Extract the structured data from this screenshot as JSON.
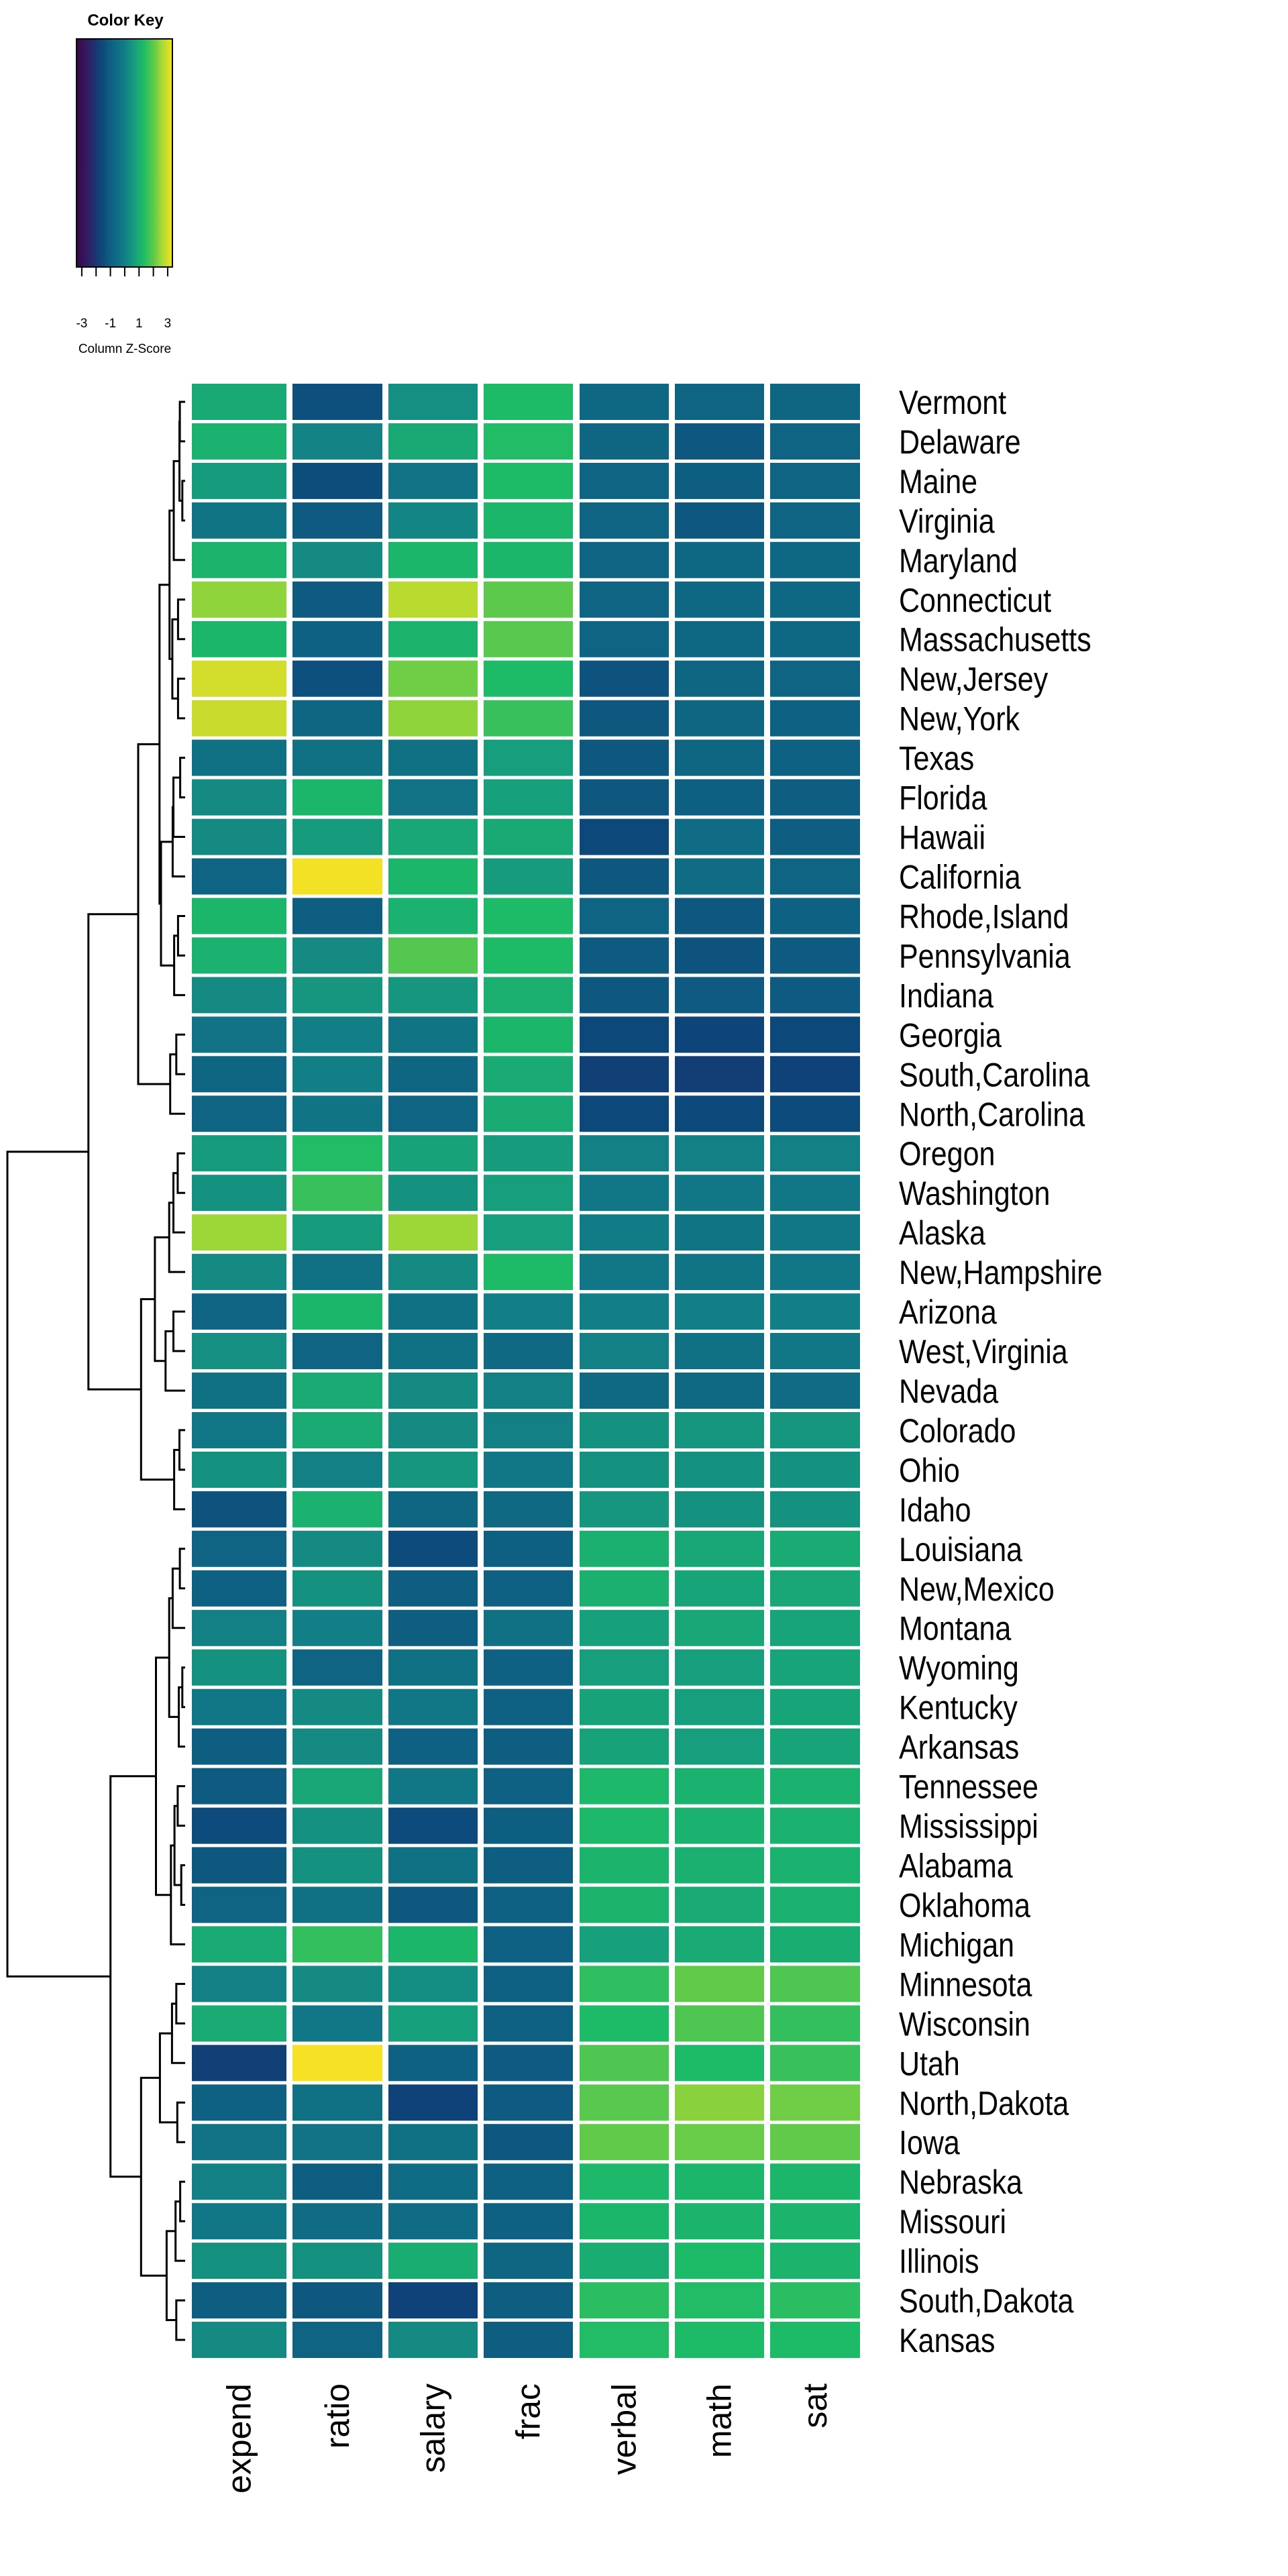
{
  "chart_data": {
    "type": "heatmap",
    "title": "",
    "color_key": {
      "title": "Color Key",
      "xlabel": "Column Z-Score",
      "range": [
        -3.37,
        3.33
      ],
      "ticks": [
        -3,
        -2,
        -1,
        0,
        1,
        2,
        3
      ],
      "tick_labels": [
        "-3",
        "",
        "-1",
        "",
        "1",
        "",
        "3"
      ],
      "palette": "viridis",
      "color_stops": [
        {
          "z": -3.37,
          "color": "#3A0548"
        },
        {
          "z": -2.5,
          "color": "#2F2166"
        },
        {
          "z": -1.7,
          "color": "#0D4479"
        },
        {
          "z": -1.0,
          "color": "#0E5E82"
        },
        {
          "z": 0.0,
          "color": "#127E86"
        },
        {
          "z": 0.7,
          "color": "#17A07C"
        },
        {
          "z": 1.3,
          "color": "#1DBA68"
        },
        {
          "z": 2.0,
          "color": "#5CC94C"
        },
        {
          "z": 2.6,
          "color": "#A9D933"
        },
        {
          "z": 3.33,
          "color": "#F6E124"
        }
      ]
    },
    "columns": [
      "expend",
      "ratio",
      "salary",
      "frac",
      "verbal",
      "math",
      "sat"
    ],
    "rows": [
      {
        "name": "Vermont",
        "values": [
          0.9,
          -1.4,
          0.35,
          1.3,
          -0.7,
          -0.8,
          -0.75
        ]
      },
      {
        "name": "Delaware",
        "values": [
          1.1,
          0.1,
          0.9,
          1.35,
          -0.75,
          -1.15,
          -0.8
        ]
      },
      {
        "name": "Maine",
        "values": [
          0.6,
          -1.45,
          -0.35,
          1.3,
          -0.8,
          -1.0,
          -0.8
        ]
      },
      {
        "name": "Virginia",
        "values": [
          -0.3,
          -1.1,
          0.15,
          1.2,
          -0.8,
          -1.15,
          -0.8
        ]
      },
      {
        "name": "Maryland",
        "values": [
          1.15,
          0.25,
          1.2,
          1.2,
          -0.85,
          -0.7,
          -0.7
        ]
      },
      {
        "name": "Connecticut",
        "values": [
          2.4,
          -1.1,
          2.75,
          2.0,
          -0.85,
          -0.7,
          -0.7
        ]
      },
      {
        "name": "Massachusetts",
        "values": [
          1.2,
          -0.9,
          1.15,
          1.95,
          -0.8,
          -0.7,
          -0.7
        ]
      },
      {
        "name": "New,Jersey",
        "values": [
          3.0,
          -1.4,
          2.15,
          1.3,
          -1.3,
          -0.75,
          -0.8
        ]
      },
      {
        "name": "New,York",
        "values": [
          2.9,
          -0.75,
          2.4,
          1.6,
          -1.2,
          -0.75,
          -0.9
        ]
      },
      {
        "name": "Texas",
        "values": [
          -0.4,
          -0.4,
          -0.4,
          0.65,
          -1.2,
          -0.75,
          -0.9
        ]
      },
      {
        "name": "Florida",
        "values": [
          0.25,
          1.2,
          -0.35,
          0.7,
          -1.2,
          -0.95,
          -1.0
        ]
      },
      {
        "name": "Hawaii",
        "values": [
          0.25,
          0.6,
          0.85,
          0.9,
          -1.6,
          -0.55,
          -1.0
        ]
      },
      {
        "name": "California",
        "values": [
          -0.8,
          3.3,
          1.2,
          0.6,
          -1.2,
          -0.55,
          -0.8
        ]
      },
      {
        "name": "Rhode,Island",
        "values": [
          1.2,
          -1.0,
          1.1,
          1.3,
          -0.8,
          -1.2,
          -0.9
        ]
      },
      {
        "name": "Pennsylvania",
        "values": [
          1.1,
          0.25,
          1.9,
          1.3,
          -1.1,
          -1.3,
          -1.1
        ]
      },
      {
        "name": "Indiana",
        "values": [
          0.25,
          0.5,
          0.5,
          1.05,
          -1.2,
          -1.1,
          -1.1
        ]
      },
      {
        "name": "Georgia",
        "values": [
          -0.35,
          0.0,
          -0.3,
          1.2,
          -1.6,
          -1.7,
          -1.6
        ]
      },
      {
        "name": "South,Carolina",
        "values": [
          -0.75,
          0.0,
          -0.75,
          0.95,
          -1.8,
          -1.85,
          -1.75
        ]
      },
      {
        "name": "North,Carolina",
        "values": [
          -0.8,
          -0.3,
          -0.8,
          0.95,
          -1.6,
          -1.6,
          -1.5
        ]
      },
      {
        "name": "Oregon",
        "values": [
          0.6,
          1.35,
          0.75,
          0.6,
          0.05,
          0.05,
          0.05
        ]
      },
      {
        "name": "Washington",
        "values": [
          0.4,
          1.6,
          0.4,
          0.65,
          -0.25,
          -0.25,
          -0.25
        ]
      },
      {
        "name": "Alaska",
        "values": [
          2.5,
          0.6,
          2.5,
          0.65,
          -0.05,
          -0.3,
          -0.25
        ]
      },
      {
        "name": "New,Hampshire",
        "values": [
          0.25,
          -0.4,
          0.25,
          1.3,
          -0.25,
          -0.3,
          -0.25
        ]
      },
      {
        "name": "Arizona",
        "values": [
          -0.8,
          1.2,
          -0.4,
          0.0,
          0.0,
          0.0,
          0.0
        ]
      },
      {
        "name": "West,Virginia",
        "values": [
          0.35,
          -0.85,
          -0.4,
          -0.65,
          0.05,
          -0.4,
          -0.25
        ]
      },
      {
        "name": "Nevada",
        "values": [
          -0.4,
          0.95,
          0.25,
          0.05,
          -0.65,
          -0.65,
          -0.55
        ]
      },
      {
        "name": "Colorado",
        "values": [
          -0.25,
          0.95,
          0.25,
          0.05,
          0.4,
          0.5,
          0.5
        ]
      },
      {
        "name": "Ohio",
        "values": [
          0.4,
          0.05,
          0.5,
          -0.25,
          0.4,
          0.4,
          0.4
        ]
      },
      {
        "name": "Idaho",
        "values": [
          -1.3,
          1.1,
          -0.75,
          -0.65,
          0.5,
          0.4,
          0.4
        ]
      },
      {
        "name": "Louisiana",
        "values": [
          -0.8,
          0.25,
          -1.5,
          -0.95,
          1.05,
          0.85,
          0.95
        ]
      },
      {
        "name": "New,Mexico",
        "values": [
          -0.9,
          0.4,
          -1.0,
          -0.9,
          1.05,
          0.8,
          0.85
        ]
      },
      {
        "name": "Montana",
        "values": [
          0.05,
          0.0,
          -1.0,
          -0.4,
          0.7,
          0.85,
          0.8
        ]
      },
      {
        "name": "Wyoming",
        "values": [
          0.4,
          -0.8,
          -0.4,
          -0.9,
          0.65,
          0.65,
          0.8
        ]
      },
      {
        "name": "Kentucky",
        "values": [
          -0.25,
          0.25,
          -0.25,
          -0.9,
          0.75,
          0.65,
          0.8
        ]
      },
      {
        "name": "Arkansas",
        "values": [
          -1.0,
          0.25,
          -0.9,
          -1.0,
          0.75,
          0.65,
          0.8
        ]
      },
      {
        "name": "Tennessee",
        "values": [
          -1.1,
          0.85,
          -0.25,
          -0.9,
          1.25,
          1.1,
          1.1
        ]
      },
      {
        "name": "Mississippi",
        "values": [
          -1.5,
          0.4,
          -1.5,
          -1.0,
          1.25,
          1.1,
          1.1
        ]
      },
      {
        "name": "Alabama",
        "values": [
          -1.2,
          0.4,
          -0.4,
          -1.0,
          1.15,
          1.05,
          1.1
        ]
      },
      {
        "name": "Oklahoma",
        "values": [
          -0.8,
          -0.4,
          -1.2,
          -0.9,
          1.15,
          0.95,
          1.1
        ]
      },
      {
        "name": "Michigan",
        "values": [
          0.95,
          1.55,
          1.2,
          -0.9,
          0.7,
          0.95,
          1.0
        ]
      },
      {
        "name": "Minnesota",
        "values": [
          0.05,
          0.25,
          0.3,
          -0.9,
          1.5,
          2.05,
          1.85
        ]
      },
      {
        "name": "Wisconsin",
        "values": [
          0.95,
          -0.25,
          0.7,
          -0.9,
          1.3,
          1.85,
          1.55
        ]
      },
      {
        "name": "Utah",
        "values": [
          -1.8,
          3.4,
          -0.9,
          -1.1,
          1.85,
          1.3,
          1.6
        ]
      },
      {
        "name": "North,Dakota",
        "values": [
          -0.9,
          -0.4,
          -1.75,
          -1.1,
          1.95,
          2.35,
          2.15
        ]
      },
      {
        "name": "Iowa",
        "values": [
          -0.35,
          -0.35,
          -0.4,
          -1.15,
          2.05,
          2.1,
          2.05
        ]
      },
      {
        "name": "Nebraska",
        "values": [
          0.05,
          -1.0,
          -0.55,
          -0.9,
          1.25,
          1.2,
          1.2
        ]
      },
      {
        "name": "Missouri",
        "values": [
          -0.25,
          -0.55,
          -0.55,
          -0.9,
          1.2,
          1.15,
          1.15
        ]
      },
      {
        "name": "Illinois",
        "values": [
          0.4,
          0.4,
          1.0,
          -0.75,
          1.0,
          1.3,
          1.15
        ]
      },
      {
        "name": "South,Dakota",
        "values": [
          -1.0,
          -1.15,
          -1.75,
          -1.0,
          1.45,
          1.35,
          1.45
        ]
      },
      {
        "name": "Kansas",
        "values": [
          0.25,
          -0.8,
          0.25,
          -1.0,
          1.35,
          1.3,
          1.3
        ]
      }
    ],
    "row_dendrogram": {
      "height_scale": "relative",
      "merges": [
        {
          "a": 0,
          "b": 1,
          "h": 0.03
        },
        {
          "a": 2,
          "b": 3,
          "h": 0.016
        },
        {
          "a": "m0",
          "b": "m1",
          "h": 0.032
        },
        {
          "a": "m2",
          "b": 4,
          "h": 0.064
        },
        {
          "a": 5,
          "b": 6,
          "h": 0.04
        },
        {
          "a": 7,
          "b": 8,
          "h": 0.04
        },
        {
          "a": "m4",
          "b": "m5",
          "h": 0.072
        },
        {
          "a": "m3",
          "b": "m6",
          "h": 0.088
        },
        {
          "a": 9,
          "b": 10,
          "h": 0.028
        },
        {
          "a": "m8",
          "b": 11,
          "h": 0.066
        },
        {
          "a": "m9",
          "b": 12,
          "h": 0.07
        },
        {
          "a": 13,
          "b": 14,
          "h": 0.04
        },
        {
          "a": "m11",
          "b": 15,
          "h": 0.062
        },
        {
          "a": "m10",
          "b": "m12",
          "h": 0.136
        },
        {
          "a": "m7",
          "b": "m13",
          "h": 0.144
        },
        {
          "a": 16,
          "b": 17,
          "h": 0.05
        },
        {
          "a": "m15",
          "b": 18,
          "h": 0.084
        },
        {
          "a": "m14",
          "b": "m16",
          "h": 0.264
        },
        {
          "a": 19,
          "b": 20,
          "h": 0.042
        },
        {
          "a": "m18",
          "b": 21,
          "h": 0.066
        },
        {
          "a": "m19",
          "b": 22,
          "h": 0.09
        },
        {
          "a": 23,
          "b": 24,
          "h": 0.066
        },
        {
          "a": "m21",
          "b": 25,
          "h": 0.11
        },
        {
          "a": "m20",
          "b": "m22",
          "h": 0.17
        },
        {
          "a": 26,
          "b": 27,
          "h": 0.032
        },
        {
          "a": "m24",
          "b": 28,
          "h": 0.062
        },
        {
          "a": "m23",
          "b": "m25",
          "h": 0.248
        },
        {
          "a": "m17",
          "b": "m26",
          "h": 0.544
        },
        {
          "a": 29,
          "b": 30,
          "h": 0.03
        },
        {
          "a": "m28",
          "b": 31,
          "h": 0.07
        },
        {
          "a": 32,
          "b": 33,
          "h": 0.016
        },
        {
          "a": "m30",
          "b": 34,
          "h": 0.036
        },
        {
          "a": "m29",
          "b": "m31",
          "h": 0.09
        },
        {
          "a": 35,
          "b": 36,
          "h": 0.042
        },
        {
          "a": 37,
          "b": 38,
          "h": 0.022
        },
        {
          "a": "m33",
          "b": "m34",
          "h": 0.06
        },
        {
          "a": "m35",
          "b": 39,
          "h": 0.08
        },
        {
          "a": "m32",
          "b": "m36",
          "h": 0.164
        },
        {
          "a": 40,
          "b": 41,
          "h": 0.05
        },
        {
          "a": "m38",
          "b": 42,
          "h": 0.074
        },
        {
          "a": 43,
          "b": 44,
          "h": 0.044
        },
        {
          "a": "m39",
          "b": "m40",
          "h": 0.142
        },
        {
          "a": 45,
          "b": 46,
          "h": 0.028
        },
        {
          "a": "m42",
          "b": 47,
          "h": 0.054
        },
        {
          "a": 48,
          "b": 49,
          "h": 0.05
        },
        {
          "a": "m43",
          "b": "m44",
          "h": 0.104
        },
        {
          "a": "m41",
          "b": "m45",
          "h": 0.248
        },
        {
          "a": "m37",
          "b": "m46",
          "h": 0.42
        },
        {
          "a": "m27",
          "b": "m47",
          "h": 1.0
        }
      ]
    }
  }
}
